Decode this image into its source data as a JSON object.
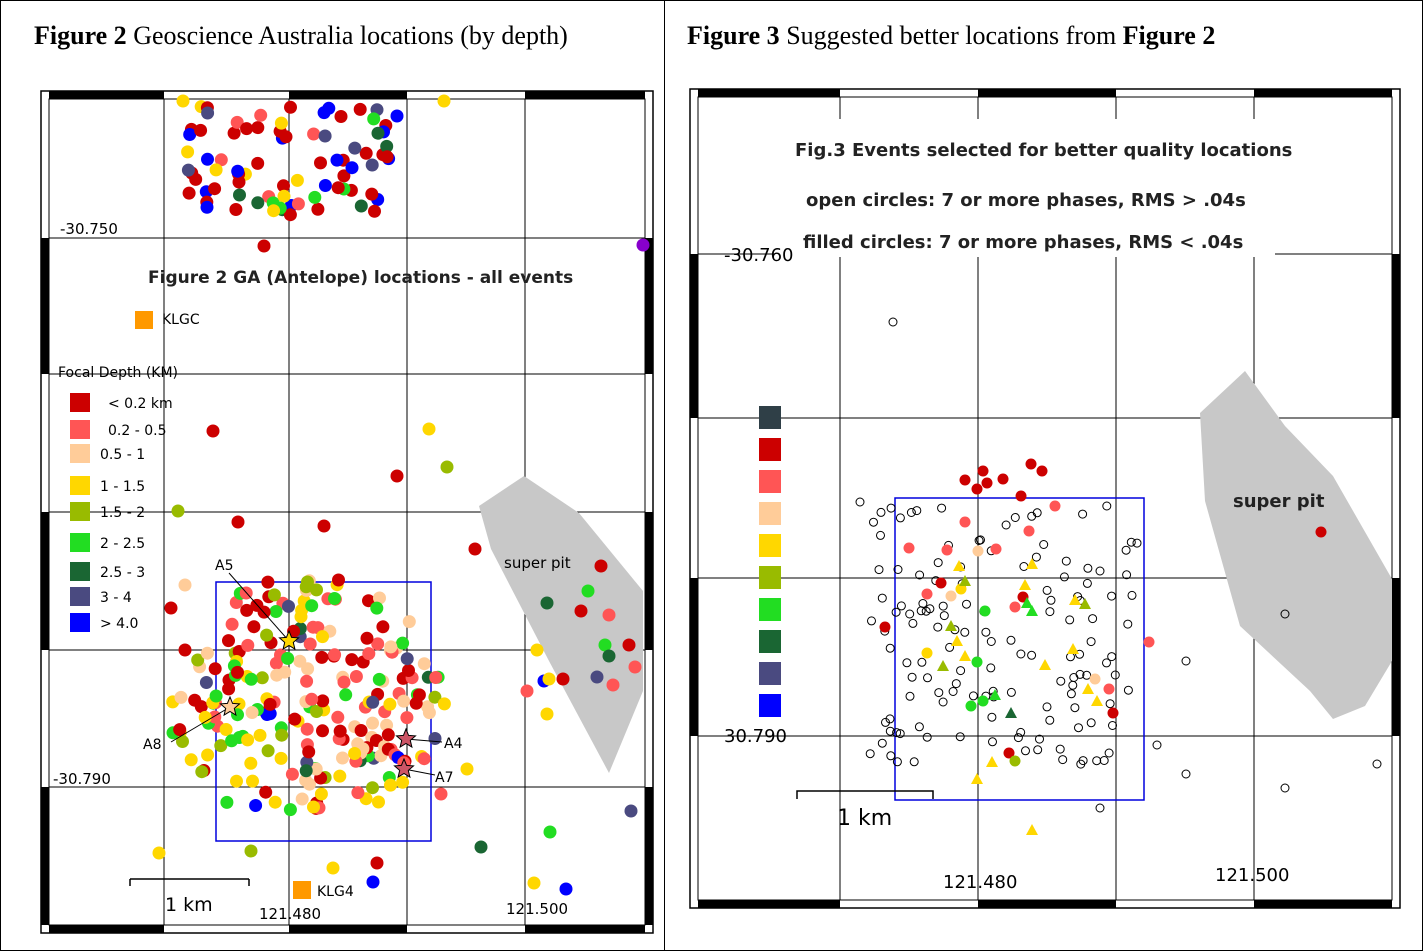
{
  "left": {
    "caption": {
      "fig": "Figure 2",
      "text": "Geoscience Australia locations (by depth)"
    },
    "map_title": "Figure 2  GA (Antelope) locations - all events",
    "station_klgc": "KLGC",
    "station_klg4": "KLG4",
    "lat_top": "-30.750",
    "lat_bottom": "-30.790",
    "lon_a": "121.480",
    "lon_b": "121.500",
    "scale_label": "1 km",
    "superpit_label": "super pit",
    "legend_title": "Focal Depth (KM)",
    "legend": [
      {
        "label": "< 0.2 km",
        "color": "#cc0000"
      },
      {
        "label": "0.2 - 0.5",
        "color": "#ff5555"
      },
      {
        "label": "0.5 - 1",
        "color": "#ffcc99"
      },
      {
        "label": "1 - 1.5",
        "color": "#ffd700"
      },
      {
        "label": "1.5 - 2",
        "color": "#99bb00"
      },
      {
        "label": "2 - 2.5",
        "color": "#22dd22"
      },
      {
        "label": "2.5 - 3",
        "color": "#1a6633"
      },
      {
        "label": "3 - 4",
        "color": "#4a4a80"
      },
      {
        "label": "> 4.0",
        "color": "#0000ff"
      }
    ],
    "stars": [
      "A5",
      "A8",
      "A4",
      "A7"
    ]
  },
  "right": {
    "caption": {
      "fig": "Figure 3",
      "text": "Suggested better locations from",
      "fig2": "Figure 2"
    },
    "title_line1": "Fig.3  Events selected for better quality locations",
    "title_line2": "open circles:  7 or more phases, RMS > .04s",
    "title_line3": "filled circles: 7 or more phases, RMS < .04s",
    "lat_top": "-30.760",
    "lat_bottom": "30.790",
    "lon_a": "121.480",
    "lon_b": "121.500",
    "scale_label": "1 km",
    "superpit_label": "super pit",
    "legend_colors": [
      "#2f3f47",
      "#cc0000",
      "#ff5555",
      "#ffcc99",
      "#ffd700",
      "#99bb00",
      "#22dd22",
      "#1a6633",
      "#4a4a80",
      "#0000ff"
    ]
  }
}
